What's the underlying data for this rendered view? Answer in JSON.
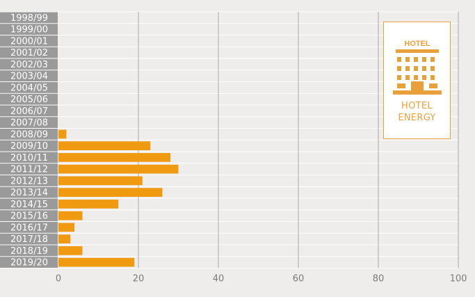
{
  "chart_data": {
    "type": "bar",
    "orientation": "horizontal",
    "categories": [
      "1998/99",
      "1999/00",
      "2000/01",
      "2001/02",
      "2002/03",
      "2003/04",
      "2004/05",
      "2005/06",
      "2006/07",
      "2007/08",
      "2008/09",
      "2009/10",
      "2010/11",
      "2011/12",
      "2012/13",
      "2013/14",
      "2014/15",
      "2015/16",
      "2016/17",
      "2017/18",
      "2018/19",
      "2019/20"
    ],
    "values": [
      0,
      0,
      0,
      0,
      0,
      0,
      0,
      0,
      0,
      0,
      2,
      23,
      28,
      30,
      21,
      26,
      15,
      6,
      4,
      3,
      6,
      19
    ],
    "xlim": [
      0,
      100
    ],
    "xticks": [
      0,
      20,
      40,
      60,
      80,
      100
    ],
    "grid": true,
    "colors": {
      "bar": "#ef9a10",
      "label_bg": "#9a9a9a",
      "grid": "#a8a8a8",
      "background": "#efedec"
    }
  },
  "logo": {
    "sign_text": "HOTEL",
    "line1": "HOTEL",
    "line2": "ENERGY",
    "color": "#e8a13a",
    "icon": "hotel-building-icon"
  }
}
